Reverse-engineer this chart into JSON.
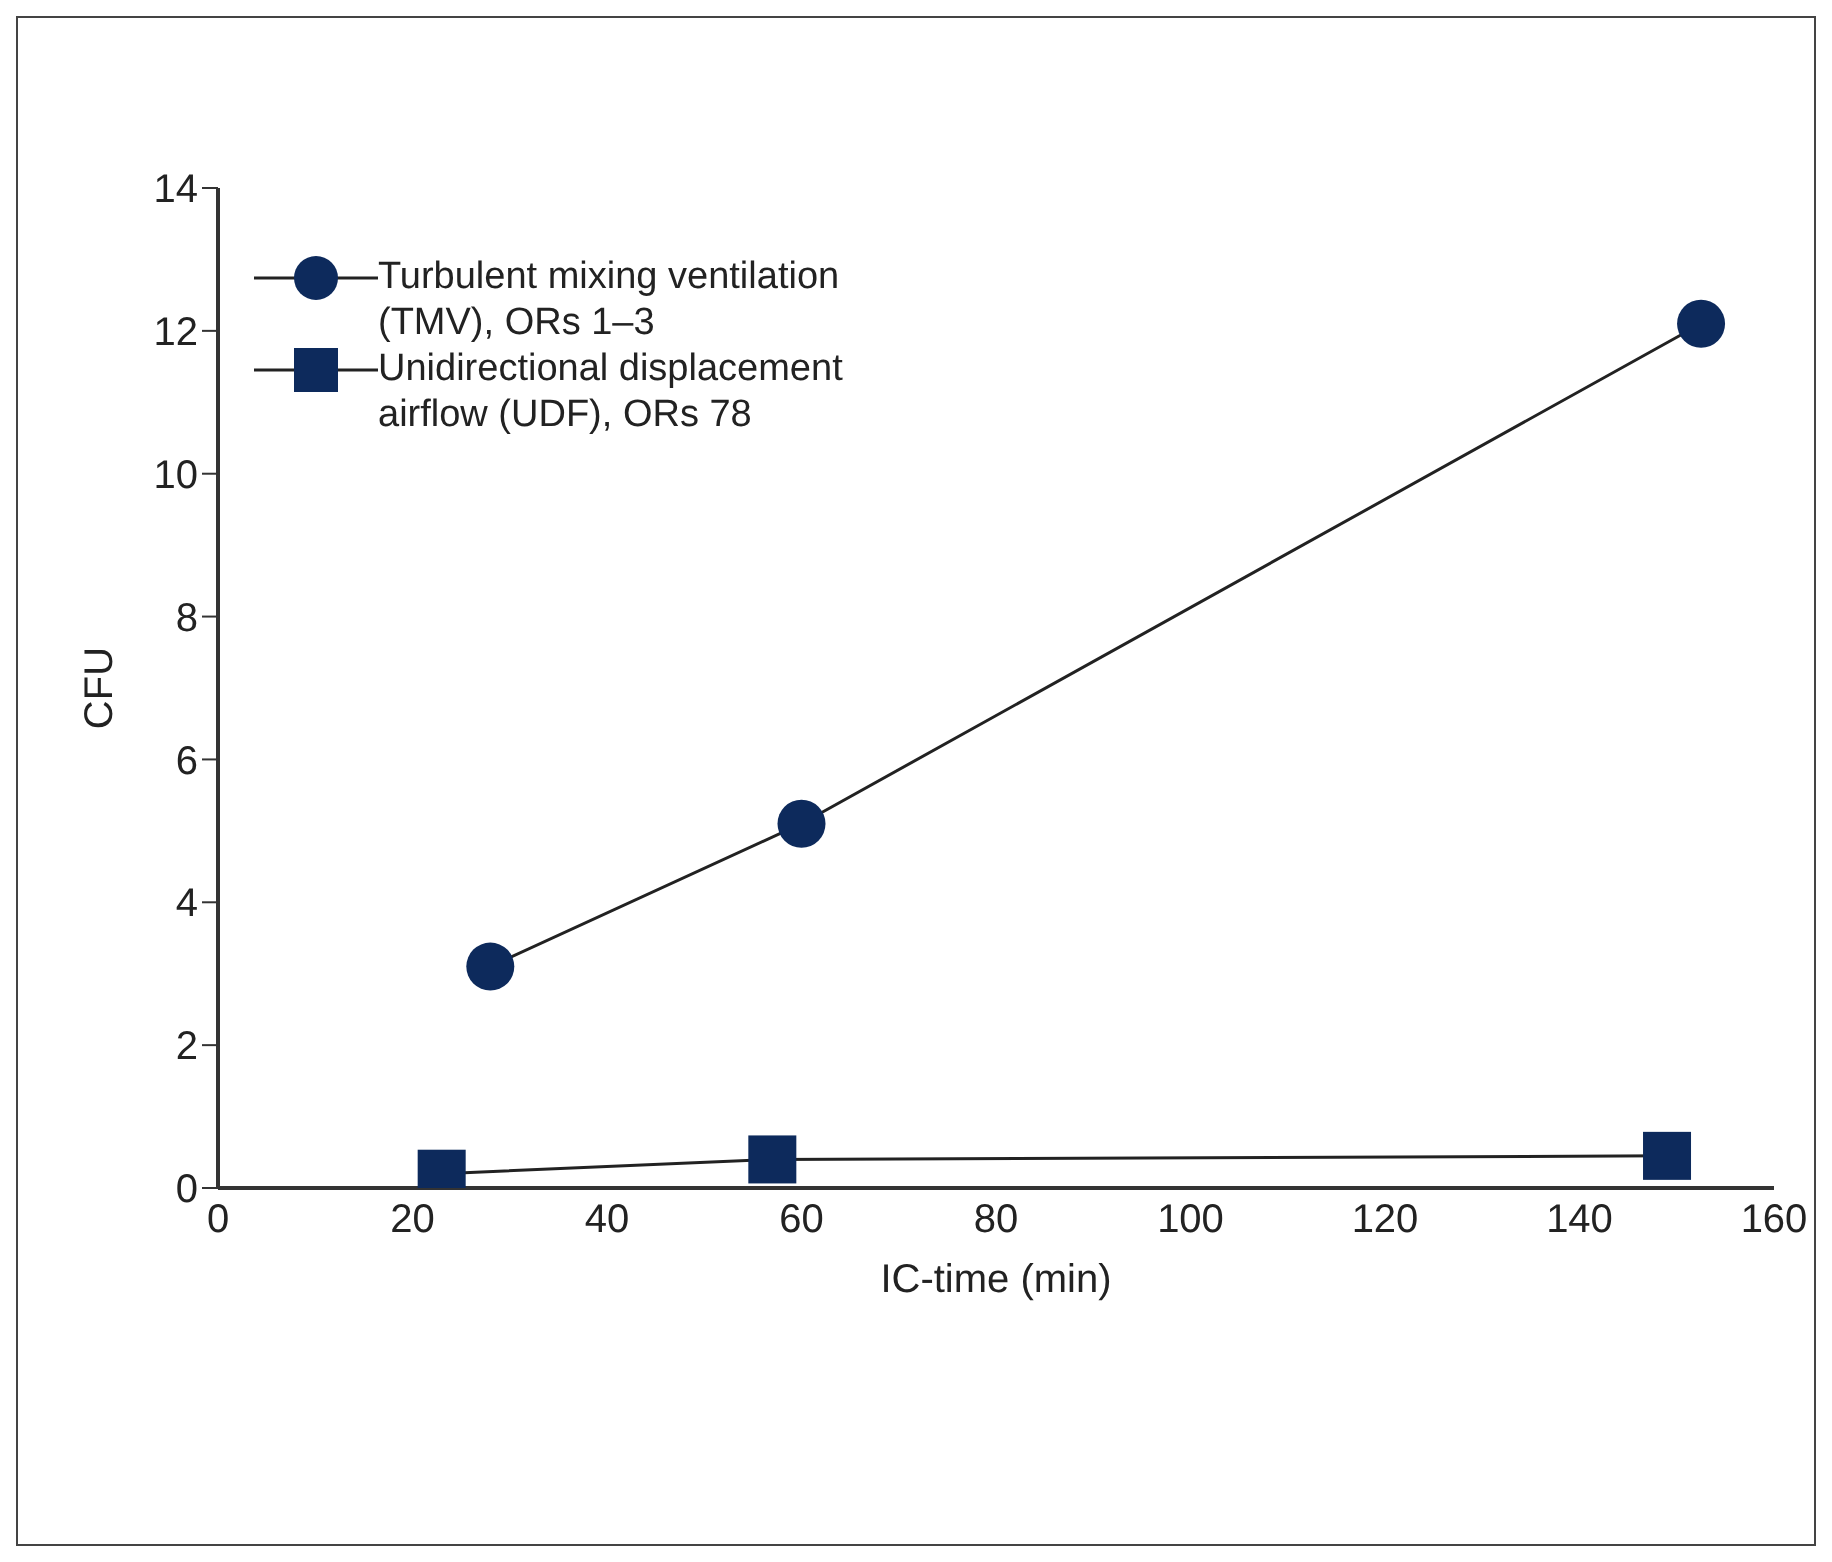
{
  "chart_data": {
    "type": "line",
    "xlabel": "IC-time (min)",
    "ylabel": "CFU",
    "xlim": [
      0,
      160
    ],
    "xticks": [
      0,
      20,
      40,
      60,
      80,
      100,
      120,
      140,
      160
    ],
    "ylim": [
      0,
      14
    ],
    "yticks": [
      0,
      2,
      4,
      6,
      8,
      10,
      12,
      14
    ],
    "grid": false,
    "legend": "top left",
    "line_style": "solid",
    "series": [
      {
        "name": "Turbulent mixing ventilation (TMV), ORs 1–3",
        "color": "#0d2a5c",
        "marker": "circle",
        "x": [
          28,
          60,
          152.5
        ],
        "values": [
          3.1,
          5.1,
          12.1
        ]
      },
      {
        "name": "Unidirectional displacement airflow (UDF), ORs 78",
        "color": "#0d2a5c",
        "marker": "square",
        "x": [
          23,
          57,
          149
        ],
        "values": [
          0.2,
          0.4,
          0.45
        ]
      }
    ]
  }
}
